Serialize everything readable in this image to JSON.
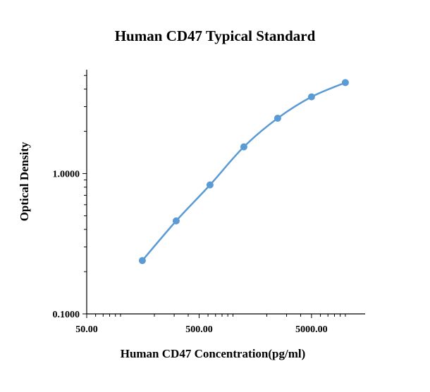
{
  "chart_data": {
    "type": "scatter",
    "title": "Human CD47 Typical Standard",
    "xlabel": "Human CD47 Concentration(pg/ml)",
    "ylabel": "Optical Density",
    "x_scale": "log",
    "y_scale": "log",
    "xlim": [
      50,
      15000
    ],
    "ylim": [
      0.1,
      5.5
    ],
    "x_tick_labels": [
      "50.00",
      "500.00",
      "5000.00"
    ],
    "x_tick_values": [
      50,
      500,
      5000
    ],
    "y_tick_labels": [
      "0.1000",
      "1.0000"
    ],
    "y_tick_values": [
      0.1,
      1.0
    ],
    "grid": false,
    "line_style": "smoothed",
    "series": [
      {
        "color": "#5B9BD5",
        "x": [
          156.25,
          312.5,
          625,
          1250,
          2500,
          5000,
          10000
        ],
        "y": [
          0.24,
          0.46,
          0.83,
          1.55,
          2.48,
          3.52,
          4.45
        ]
      }
    ]
  }
}
